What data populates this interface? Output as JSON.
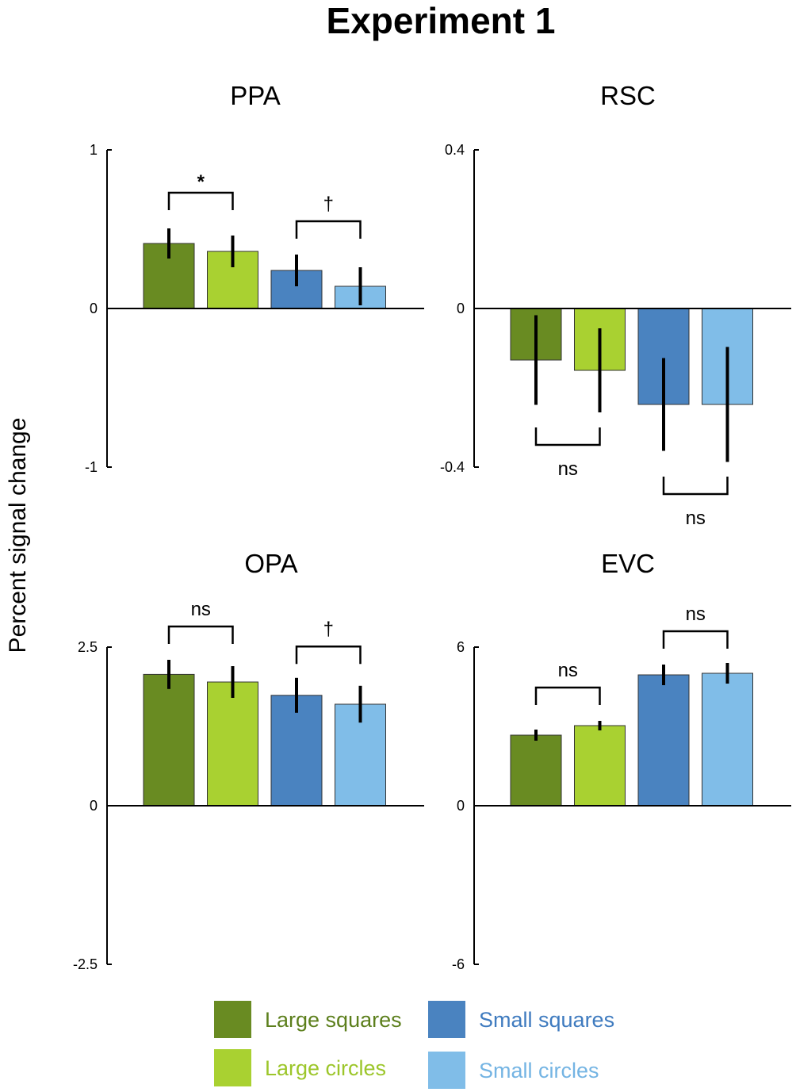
{
  "chart_data": [
    {
      "type": "bar",
      "title": "PPA",
      "categories": [
        "Large squares",
        "Large circles",
        "Small squares",
        "Small circles"
      ],
      "values": [
        0.41,
        0.36,
        0.24,
        0.14
      ],
      "errors": [
        0.095,
        0.1,
        0.1,
        0.12
      ],
      "ylim": [
        -1,
        1
      ],
      "yticks": [
        "1",
        "0",
        "-1"
      ],
      "ytick_values": [
        1,
        0,
        -1
      ],
      "annotations": [
        {
          "bars": [
            0,
            1
          ],
          "label": "*",
          "y": 0.73,
          "legs": "down",
          "label_pos": "above"
        },
        {
          "bars": [
            2,
            3
          ],
          "label": "†",
          "y": 0.55,
          "legs": "down",
          "label_pos": "above"
        }
      ]
    },
    {
      "type": "bar",
      "title": "RSC",
      "categories": [
        "Large squares",
        "Large circles",
        "Small squares",
        "Small circles"
      ],
      "values": [
        -0.13,
        -0.156,
        -0.242,
        -0.242
      ],
      "errors": [
        0.113,
        0.106,
        0.117,
        0.145
      ],
      "ylim": [
        -0.4,
        0.4
      ],
      "yticks": [
        "0.4",
        "0",
        "-0.4"
      ],
      "ytick_values": [
        0.4,
        0,
        -0.4
      ],
      "annotations": [
        {
          "bars": [
            0,
            1
          ],
          "label": "ns",
          "y": -0.344,
          "legs": "up",
          "label_pos": "below"
        },
        {
          "bars": [
            2,
            3
          ],
          "label": "ns",
          "y": -0.468,
          "legs": "up",
          "label_pos": "below"
        }
      ]
    },
    {
      "type": "bar",
      "title": "OPA",
      "categories": [
        "Large squares",
        "Large circles",
        "Small squares",
        "Small circles"
      ],
      "values": [
        2.07,
        1.95,
        1.74,
        1.6
      ],
      "errors": [
        0.23,
        0.25,
        0.275,
        0.29
      ],
      "ylim": [
        -2.5,
        2.5
      ],
      "yticks": [
        "2.5",
        "0",
        "-2.5"
      ],
      "ytick_values": [
        2.5,
        0,
        -2.5
      ],
      "annotations": [
        {
          "bars": [
            0,
            1
          ],
          "label": "ns",
          "y": 2.825,
          "legs": "down",
          "label_pos": "above"
        },
        {
          "bars": [
            2,
            3
          ],
          "label": "†",
          "y": 2.51,
          "legs": "down",
          "label_pos": "above"
        }
      ]
    },
    {
      "type": "bar",
      "title": "EVC",
      "categories": [
        "Large squares",
        "Large circles",
        "Small squares",
        "Small circles"
      ],
      "values": [
        2.67,
        3.03,
        4.95,
        5.01
      ],
      "errors": [
        0.21,
        0.18,
        0.39,
        0.39
      ],
      "ylim": [
        -6,
        6
      ],
      "yticks": [
        "6",
        "0",
        "-6"
      ],
      "ytick_values": [
        6,
        0,
        -6
      ],
      "annotations": [
        {
          "bars": [
            0,
            1
          ],
          "label": "ns",
          "y": 4.47,
          "legs": "down",
          "label_pos": "above"
        },
        {
          "bars": [
            2,
            3
          ],
          "label": "ns",
          "y": 6.6,
          "legs": "down",
          "label_pos": "above"
        }
      ]
    }
  ],
  "figure": {
    "title": "Experiment 1",
    "ylabel": "Percent signal change"
  },
  "legend": {
    "placement": "bottom-center",
    "items": [
      {
        "label": "Large squares",
        "color": "#698b22",
        "text_color": "#5c7f1c"
      },
      {
        "label": "Large circles",
        "color": "#a9d131",
        "text_color": "#9cc62a"
      },
      {
        "label": "Small squares",
        "color": "#4a83c0",
        "text_color": "#3f7bbf"
      },
      {
        "label": "Small circles",
        "color": "#80bde8",
        "text_color": "#74b4e3"
      }
    ]
  }
}
